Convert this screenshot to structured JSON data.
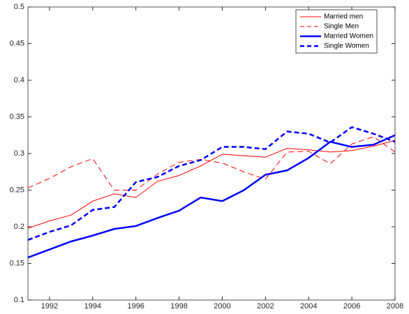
{
  "chart_data": {
    "type": "line",
    "x": [
      1991,
      1992,
      1993,
      1994,
      1995,
      1996,
      1997,
      1998,
      1999,
      2000,
      2001,
      2002,
      2003,
      2004,
      2005,
      2006,
      2007,
      2008
    ],
    "series": [
      {
        "name": "Married men",
        "color": "#ff0000",
        "dashed": false,
        "linewidth": 1,
        "values": [
          0.198,
          0.208,
          0.216,
          0.235,
          0.245,
          0.24,
          0.262,
          0.27,
          0.283,
          0.299,
          0.297,
          0.295,
          0.307,
          0.305,
          0.302,
          0.304,
          0.31,
          0.318
        ]
      },
      {
        "name": "Single Men",
        "color": "#ff0000",
        "dashed": true,
        "linewidth": 1,
        "values": [
          0.253,
          0.266,
          0.282,
          0.293,
          0.25,
          0.25,
          0.272,
          0.288,
          0.292,
          0.287,
          0.275,
          0.265,
          0.302,
          0.303,
          0.286,
          0.313,
          0.323,
          0.302
        ]
      },
      {
        "name": "Married Women",
        "color": "#0000ff",
        "dashed": false,
        "linewidth": 2.5,
        "values": [
          0.158,
          0.169,
          0.18,
          0.188,
          0.197,
          0.201,
          0.212,
          0.222,
          0.24,
          0.235,
          0.25,
          0.271,
          0.277,
          0.294,
          0.316,
          0.309,
          0.312,
          0.325
        ]
      },
      {
        "name": "Single Women",
        "color": "#0000ff",
        "dashed": true,
        "linewidth": 2.5,
        "values": [
          0.182,
          0.193,
          0.202,
          0.223,
          0.227,
          0.261,
          0.268,
          0.283,
          0.291,
          0.309,
          0.309,
          0.306,
          0.33,
          0.327,
          0.315,
          0.336,
          0.327,
          0.316
        ]
      }
    ],
    "xlim": [
      1991,
      2008
    ],
    "xticks": [
      1992,
      1994,
      1996,
      1998,
      2000,
      2002,
      2004,
      2006,
      2008
    ],
    "ylim": [
      0.1,
      0.5
    ],
    "yticks": [
      0.1,
      0.15,
      0.2,
      0.25,
      0.3,
      0.35,
      0.4,
      0.45,
      0.5
    ],
    "grid": false,
    "legend": "upper right"
  }
}
